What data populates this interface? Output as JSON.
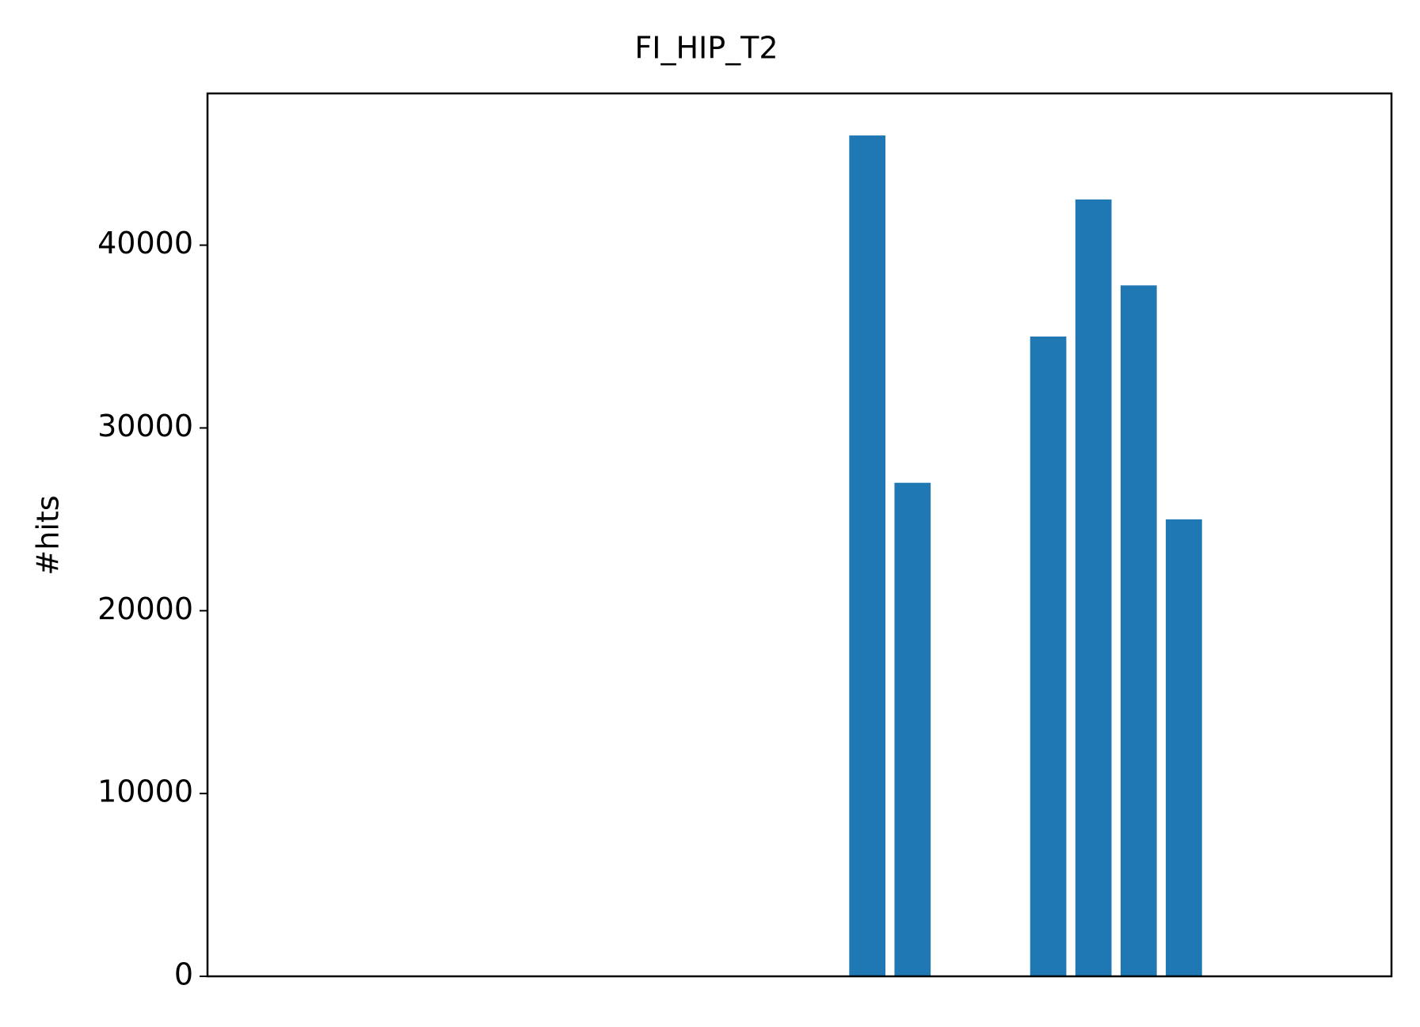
{
  "chart_data": {
    "type": "bar",
    "title": "FI_HIP_T2",
    "y_label": "#hits",
    "categories": [
      null,
      null,
      null,
      null,
      null,
      null,
      null,
      null,
      null,
      null,
      null,
      null,
      null,
      null,
      null,
      null,
      null,
      null,
      null,
      null,
      null,
      null,
      null,
      null
    ],
    "values": [
      0,
      0,
      0,
      0,
      0,
      0,
      0,
      0,
      0,
      0,
      0,
      0,
      0,
      46000,
      27000,
      0,
      0,
      35000,
      42500,
      37800,
      25000,
      0,
      0,
      0
    ],
    "color": "#1f77b4",
    "ylim": [
      0,
      48300
    ],
    "yticks": [
      0,
      10000,
      20000,
      30000,
      40000
    ],
    "grid": false
  }
}
